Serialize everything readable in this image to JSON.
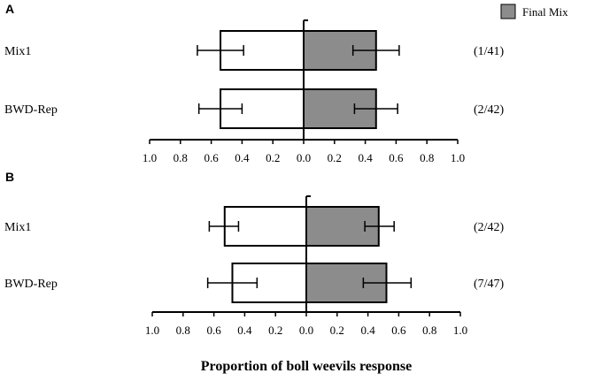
{
  "legend": {
    "label": "Final Mix",
    "color": "#8c8c8c"
  },
  "xlabel": "Proportion of boll weevils response",
  "chart_data": [
    {
      "panel_label": "A",
      "type": "bar",
      "orientation": "horizontal-diverging",
      "categories": [
        "Mix1",
        "BWD-Rep"
      ],
      "xlim": [
        -1.0,
        1.0
      ],
      "ticks": [
        "1.0",
        "0.8",
        "0.6",
        "0.4",
        "0.2",
        "0.0",
        "0.2",
        "0.4",
        "0.6",
        "0.8",
        "1.0"
      ],
      "series": [
        {
          "side": "left",
          "fill": "#ffffff",
          "values": [
            0.54,
            0.54
          ],
          "err_low": [
            0.69,
            0.68
          ],
          "err_high": [
            0.39,
            0.4
          ]
        },
        {
          "side": "right",
          "name": "Final Mix",
          "fill": "#8c8c8c",
          "values": [
            0.47,
            0.47
          ],
          "err_low": [
            0.32,
            0.33
          ],
          "err_high": [
            0.62,
            0.61
          ]
        }
      ],
      "annotations": [
        "(1/41)",
        "(2/42)"
      ]
    },
    {
      "panel_label": "B",
      "type": "bar",
      "orientation": "horizontal-diverging",
      "categories": [
        "Mix1",
        "BWD-Rep"
      ],
      "xlim": [
        -1.0,
        1.0
      ],
      "ticks": [
        "1.0",
        "0.8",
        "0.6",
        "0.4",
        "0.2",
        "0.0",
        "0.2",
        "0.4",
        "0.6",
        "0.8",
        "1.0"
      ],
      "series": [
        {
          "side": "left",
          "fill": "#ffffff",
          "values": [
            0.53,
            0.48
          ],
          "err_low": [
            0.63,
            0.64
          ],
          "err_high": [
            0.44,
            0.32
          ]
        },
        {
          "side": "right",
          "name": "Final Mix",
          "fill": "#8c8c8c",
          "values": [
            0.47,
            0.52
          ],
          "err_low": [
            0.38,
            0.37
          ],
          "err_high": [
            0.57,
            0.68
          ]
        }
      ],
      "annotations": [
        "(2/42)",
        "(7/47)"
      ]
    }
  ]
}
